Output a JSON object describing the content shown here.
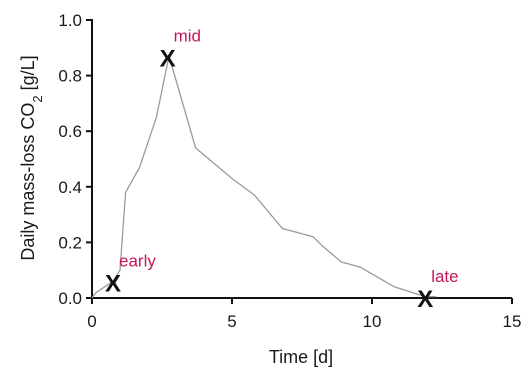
{
  "chart_data": {
    "type": "line",
    "xlabel": "Time [d]",
    "ylabel_prefix": "Daily mass-loss CO",
    "ylabel_sub": "2",
    "ylabel_suffix": " [g/L]",
    "xlim": [
      0,
      15
    ],
    "ylim": [
      0,
      1.0
    ],
    "x_ticks": [
      0,
      5,
      10,
      15
    ],
    "x_tick_labels": [
      "0",
      "5",
      "10",
      "15"
    ],
    "y_ticks": [
      0,
      0.2,
      0.4,
      0.6,
      0.8,
      1.0
    ],
    "y_tick_labels": [
      "0.0",
      "0.2",
      "0.4",
      "0.6",
      "0.8",
      "1.0"
    ],
    "grid": false,
    "series": [
      {
        "color": "#9a9a9a",
        "x": [
          0,
          0.15,
          0.45,
          0.75,
          1.0,
          1.2,
          1.7,
          2.3,
          2.75,
          3.7,
          5.0,
          5.8,
          6.8,
          7.9,
          8.2,
          8.9,
          9.6,
          10.8,
          11.9,
          12.3
        ],
        "y": [
          0.0,
          0.02,
          0.04,
          0.06,
          0.1,
          0.38,
          0.47,
          0.65,
          0.87,
          0.54,
          0.43,
          0.37,
          0.25,
          0.22,
          0.19,
          0.13,
          0.11,
          0.04,
          0.005,
          0.005
        ]
      }
    ],
    "markers": [
      {
        "label": "early",
        "symbol": "X",
        "x": 0.75,
        "y": 0.055,
        "label_color": "#c2185b"
      },
      {
        "label": "mid",
        "symbol": "X",
        "x": 2.7,
        "y": 0.865,
        "label_color": "#c2185b"
      },
      {
        "label": "late",
        "symbol": "X",
        "x": 11.9,
        "y": 0.0,
        "label_color": "#c2185b"
      }
    ]
  }
}
